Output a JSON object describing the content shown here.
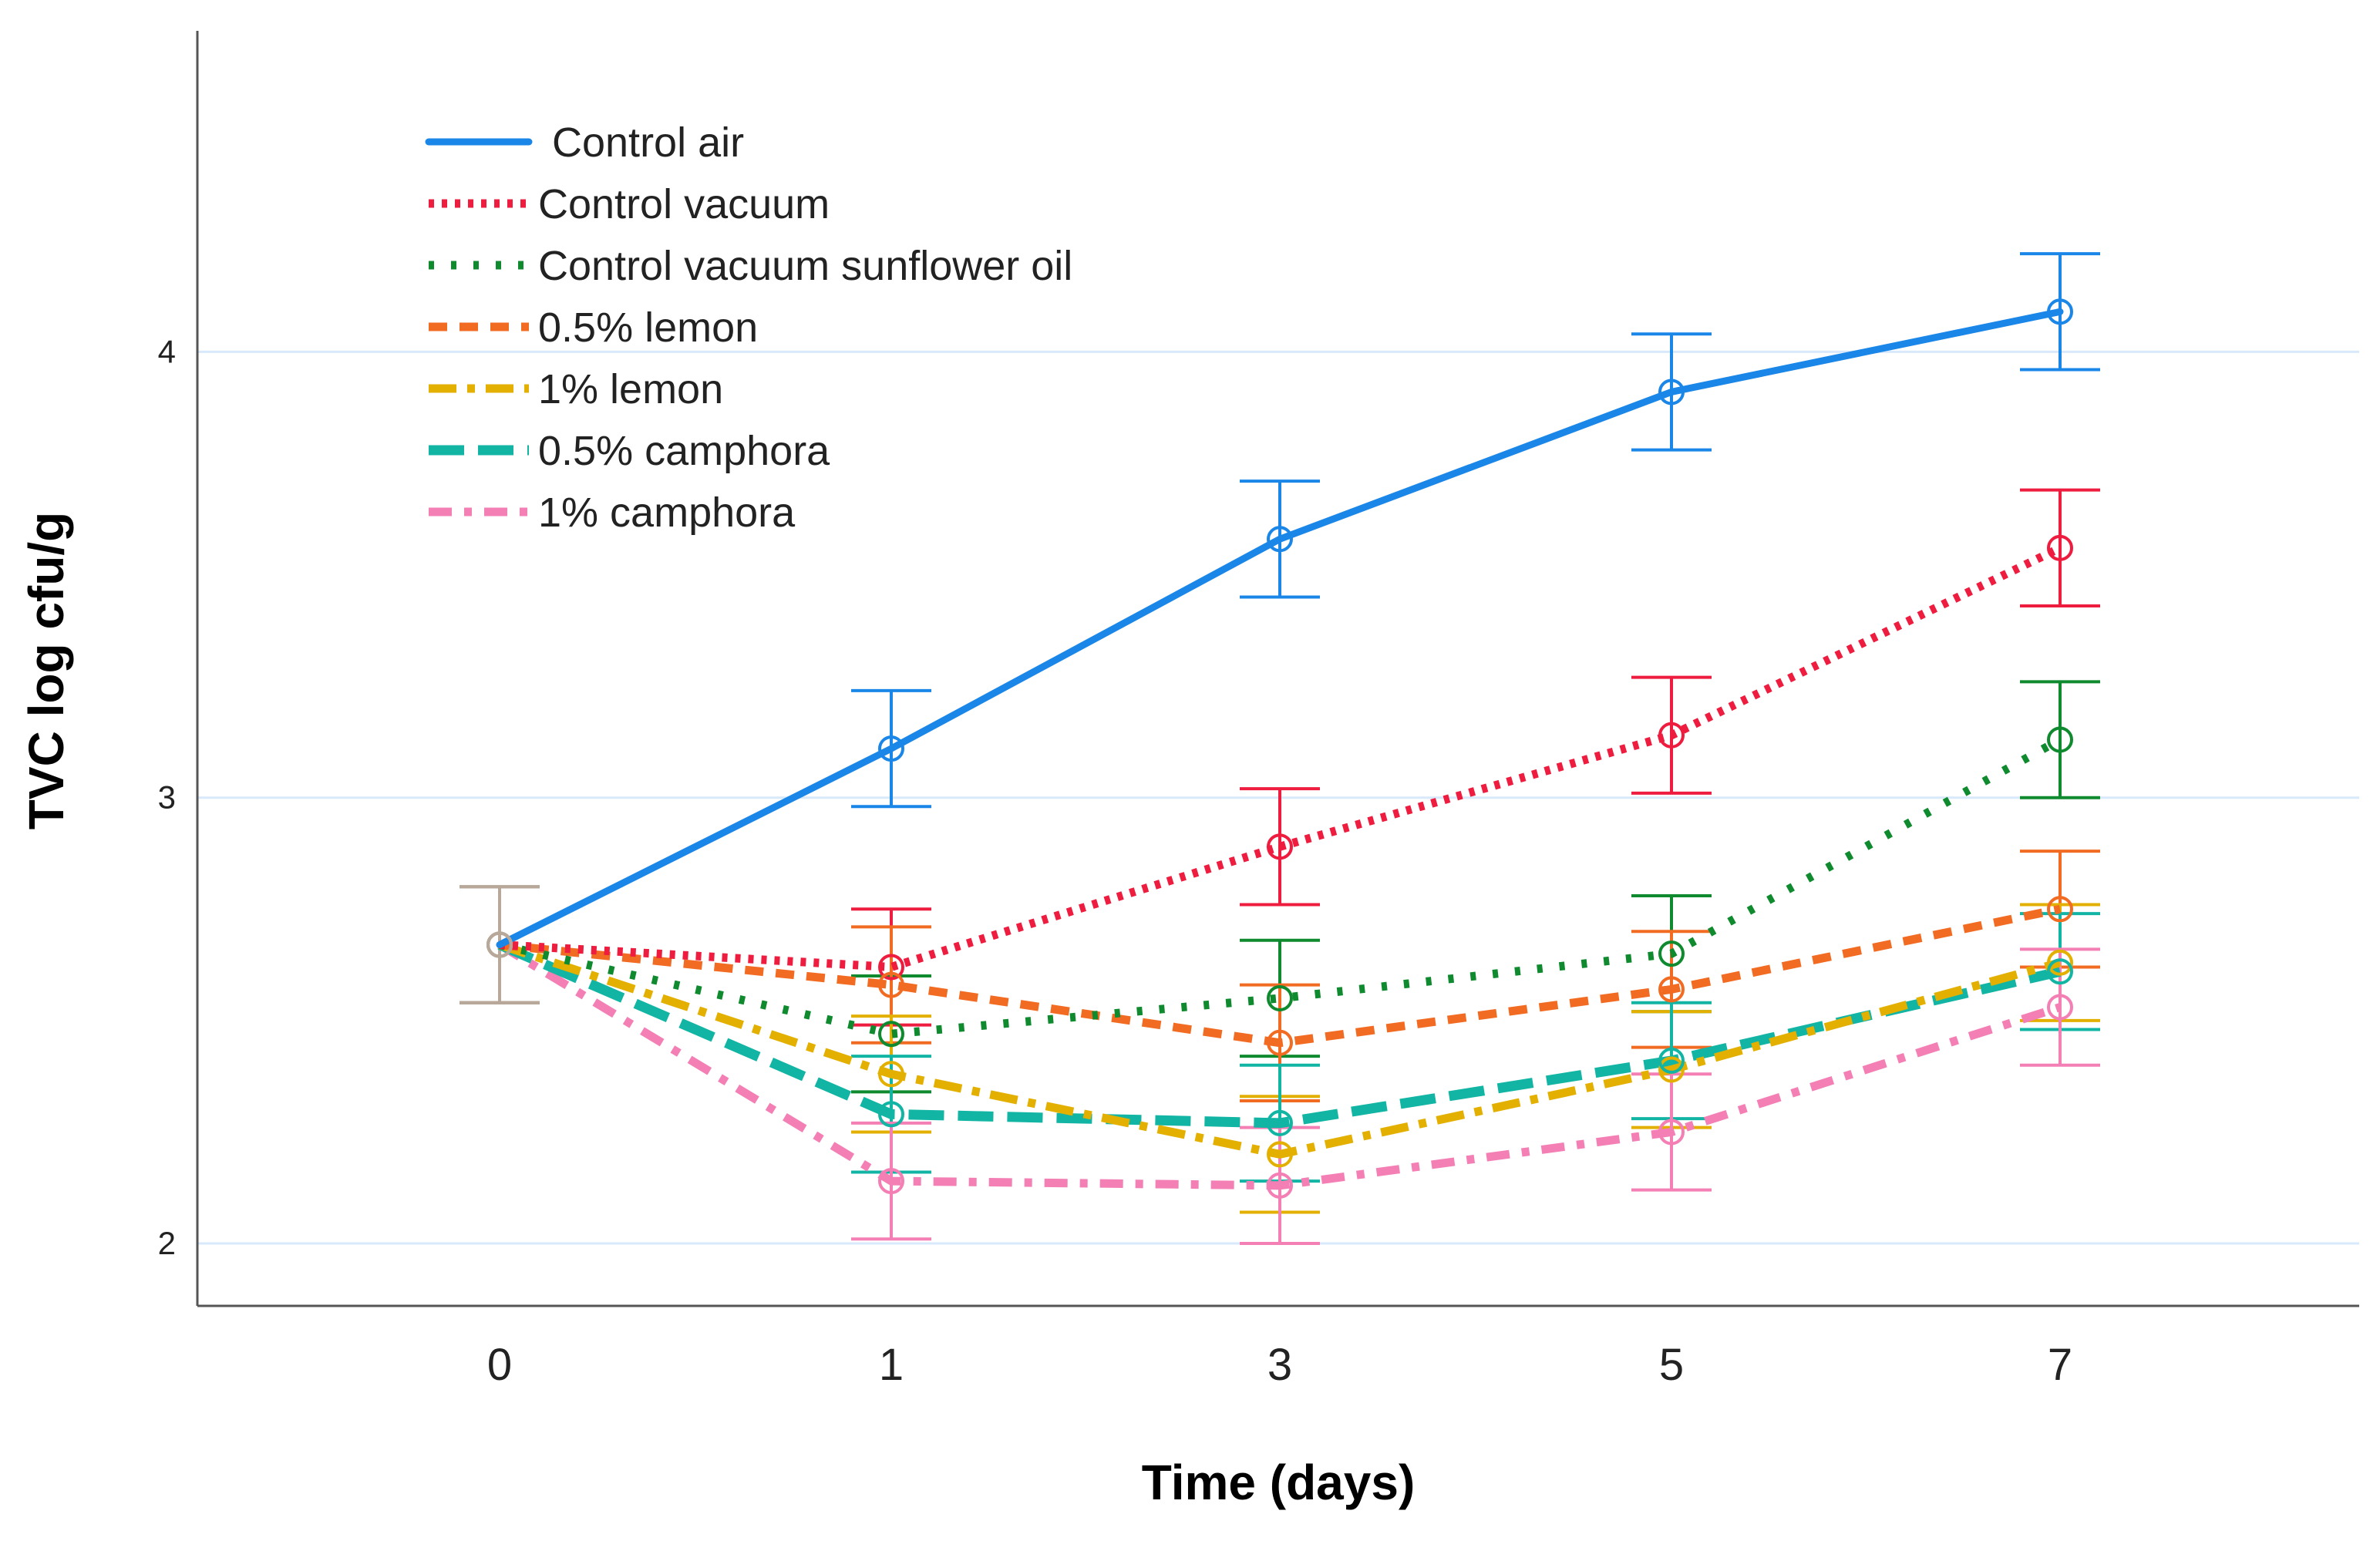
{
  "chart_data": {
    "type": "line",
    "title": "",
    "xlabel": "Time (days)",
    "ylabel": "TVC log cfu/g",
    "categories": [
      "0",
      "1",
      "3",
      "5",
      "7"
    ],
    "ylim": [
      1.86,
      4.72
    ],
    "yticks": [
      2,
      3,
      4
    ],
    "grid": "horizontal",
    "legend_position": "top-left",
    "error_bars": true,
    "series": [
      {
        "name": "Control air",
        "color": "#1a86e8",
        "dash": "solid",
        "values": [
          2.67,
          3.11,
          3.58,
          3.91,
          4.09
        ],
        "errors": [
          0.13,
          0.13,
          0.13,
          0.13,
          0.13
        ]
      },
      {
        "name": "Control vacuum",
        "color": "#ee1c3e",
        "dash": "dot",
        "values": [
          2.67,
          2.62,
          2.89,
          3.14,
          3.56
        ],
        "errors": [
          0.13,
          0.13,
          0.13,
          0.13,
          0.13
        ]
      },
      {
        "name": "Control vacuum sunflower oil",
        "color": "#0f8a2e",
        "dash": "dotwide",
        "values": [
          2.67,
          2.47,
          2.55,
          2.65,
          3.13
        ],
        "errors": [
          0.13,
          0.13,
          0.13,
          0.13,
          0.13
        ]
      },
      {
        "name": "0.5% lemon",
        "color": "#f26b22",
        "dash": "shortdash",
        "values": [
          2.67,
          2.58,
          2.45,
          2.57,
          2.75
        ],
        "errors": [
          0.13,
          0.13,
          0.13,
          0.13,
          0.13
        ]
      },
      {
        "name": "1% lemon",
        "color": "#e3b000",
        "dash": "dashdot",
        "values": [
          2.67,
          2.38,
          2.2,
          2.39,
          2.63
        ],
        "errors": [
          0.13,
          0.13,
          0.13,
          0.13,
          0.13
        ]
      },
      {
        "name": "0.5% camphora",
        "color": "#12b5a4",
        "dash": "longdash",
        "values": [
          2.67,
          2.29,
          2.27,
          2.41,
          2.61
        ],
        "errors": [
          0.13,
          0.13,
          0.13,
          0.13,
          0.13
        ]
      },
      {
        "name": "1% camphora",
        "color": "#f37fb5",
        "dash": "dashdotpink",
        "values": [
          2.67,
          2.14,
          2.13,
          2.25,
          2.53
        ],
        "errors": [
          0.13,
          0.13,
          0.13,
          0.13,
          0.13
        ]
      }
    ]
  }
}
